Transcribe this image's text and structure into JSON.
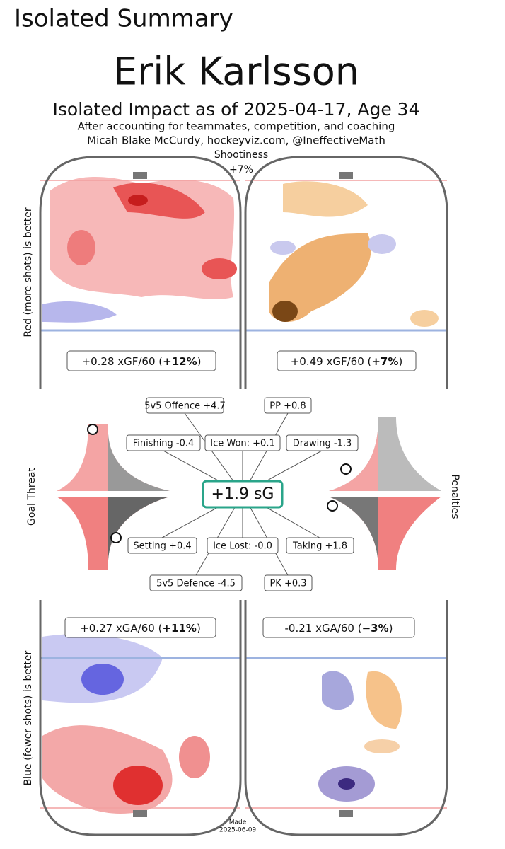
{
  "header": {
    "title": "Isolated Summary"
  },
  "figure": {
    "name": "Erik Karlsson",
    "subtitle": "Isolated Impact as of 2025-04-17, Age 34",
    "note": "After accounting for teammates, competition, and coaching",
    "credit": "Micah Blake McCurdy, hockeyviz.com, @IneffectiveMath",
    "shootiness": {
      "label": "Shootiness",
      "value": "+7%"
    },
    "offence_axis": "Red (more shots) is better",
    "defence_axis": "Blue (fewer shots) is better",
    "panels": [
      {
        "prefix": "+0.28 xGF/60 (",
        "bold": "+12%",
        "suffix": ")"
      },
      {
        "prefix": "+0.49 xGF/60 (",
        "bold": "+7%",
        "suffix": ")"
      },
      {
        "prefix": "+0.27 xGA/60 (",
        "bold": "+11%",
        "suffix": ")"
      },
      {
        "prefix": "-0.21 xGA/60 (",
        "bold": "−3%",
        "suffix": ")"
      }
    ],
    "boxes": [
      "5v5 Offence +4.7",
      "PP +0.8",
      "Finishing -0.4",
      "Ice Won: +0.1",
      "Drawing -1.3",
      "Setting +0.4",
      "Ice Lost: -0.0",
      "Taking +1.8",
      "5v5 Defence -4.5",
      "PK +0.3"
    ],
    "total": "+1.9 sG",
    "goal_threat": "Goal Threat",
    "penalties": "Penalties",
    "made": "Made",
    "made_date": "2025-06-09"
  }
}
